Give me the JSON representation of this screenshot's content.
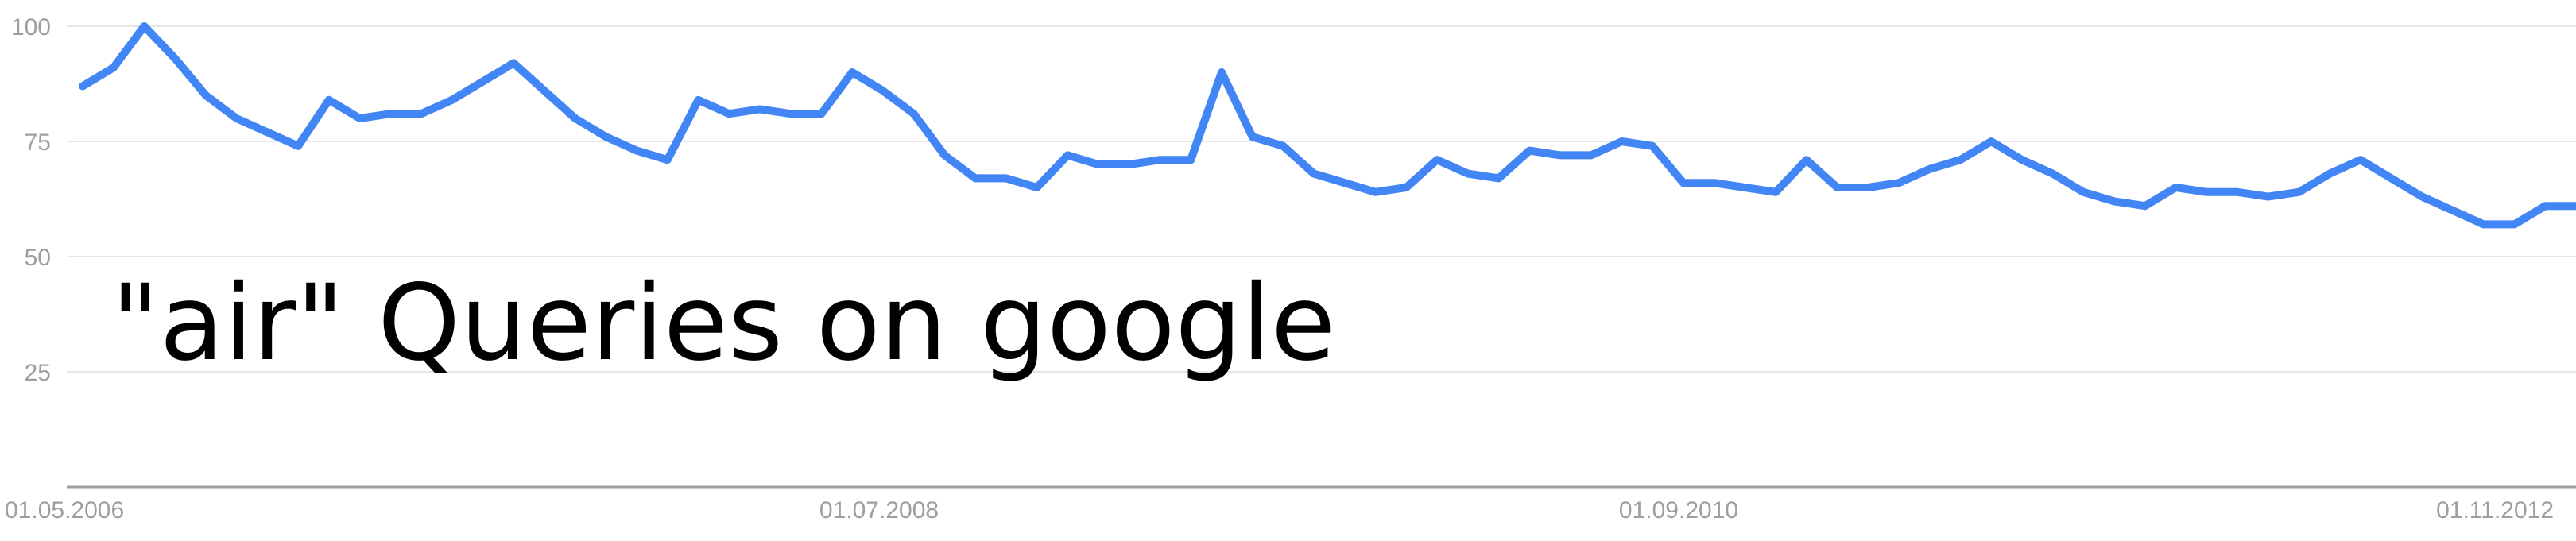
{
  "overlay_text": "\"air\" Queries on google",
  "colors": {
    "series_line": "#4285f4",
    "gridline": "#e6e6e6",
    "baseline": "#9e9e9e",
    "tick_label": "#9e9e9e",
    "overlay_text": "#000000"
  },
  "chart_data": {
    "type": "line",
    "title": "",
    "xlabel": "",
    "ylabel": "",
    "ylim": [
      0,
      100
    ],
    "grid": true,
    "legend": "none",
    "y_ticks": [
      "25",
      "50",
      "75",
      "100"
    ],
    "x_ticks": [
      "01.05.2006",
      "01.07.2008",
      "01.09.2010",
      "01.11.2012"
    ],
    "x_start": "2006-05",
    "series": [
      {
        "values": [
          87,
          91,
          100,
          93,
          85,
          80,
          77,
          74,
          84,
          80,
          81,
          81,
          84,
          88,
          92,
          86,
          80,
          76,
          73,
          71,
          84,
          81,
          82,
          81,
          81,
          90,
          86,
          81,
          72,
          67,
          67,
          65,
          72,
          70,
          70,
          71,
          71,
          90,
          76,
          74,
          68,
          66,
          64,
          65,
          71,
          68,
          67,
          73,
          72,
          72,
          75,
          74,
          66,
          66,
          65,
          64,
          71,
          65,
          65,
          66,
          69,
          71,
          75,
          71,
          68,
          64,
          62,
          61,
          65,
          64,
          64,
          63,
          64,
          68,
          71,
          67,
          63,
          60,
          57,
          57,
          61,
          61
        ]
      }
    ]
  }
}
